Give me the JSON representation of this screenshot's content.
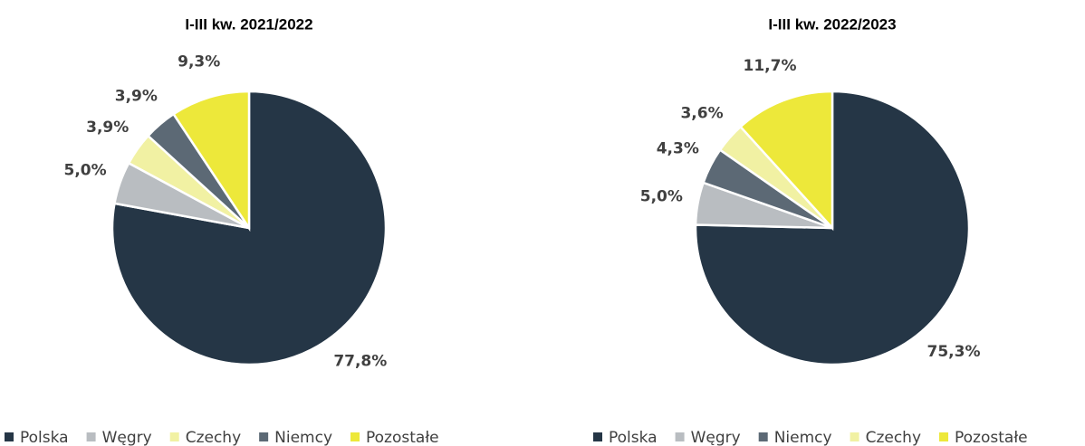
{
  "chart_data": [
    {
      "type": "pie",
      "title": "I-III kw. 2021/2022",
      "categories": [
        "Polska",
        "Węgry",
        "Czechy",
        "Niemcy",
        "Pozostałe"
      ],
      "values": [
        77.8,
        5.0,
        3.9,
        3.9,
        9.3
      ],
      "value_labels": [
        "77,8%",
        "5,0%",
        "3,9%",
        "3,9%",
        "9,3%"
      ],
      "colors": [
        "#253646",
        "#b9bdc1",
        "#f1f1a3",
        "#5c6975",
        "#ede83a"
      ]
    },
    {
      "type": "pie",
      "title": "I-III kw. 2022/2023",
      "categories": [
        "Polska",
        "Węgry",
        "Niemcy",
        "Czechy",
        "Pozostałe"
      ],
      "values": [
        75.3,
        5.0,
        4.3,
        3.6,
        11.7
      ],
      "value_labels": [
        "75,3%",
        "5,0%",
        "4,3%",
        "3,6%",
        "11,7%"
      ],
      "colors": [
        "#253646",
        "#b9bdc1",
        "#5c6975",
        "#f1f1a3",
        "#ede83a"
      ]
    }
  ]
}
